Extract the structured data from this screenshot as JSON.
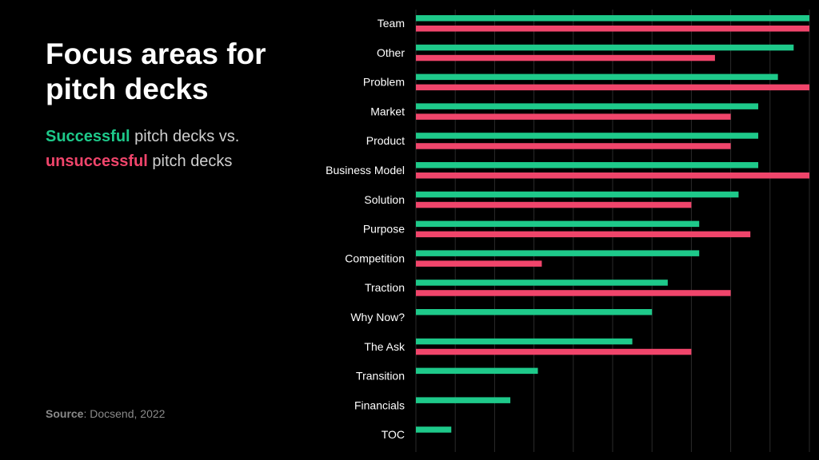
{
  "heading": {
    "title": "Focus areas for pitch decks",
    "subtitle_success": "Successful",
    "subtitle_mid": " pitch decks vs.",
    "subtitle_fail": "unsuccessful",
    "subtitle_end": " pitch decks"
  },
  "source": {
    "label": "Source",
    "text": ": Docsend, 2022"
  },
  "colors": {
    "successful": "#1ec98a",
    "unsuccessful": "#f0456b",
    "background": "#000000",
    "grid": "#2a2a2a"
  },
  "chart_data": {
    "type": "bar",
    "orientation": "horizontal",
    "categories": [
      "Team",
      "Other",
      "Problem",
      "Market",
      "Product",
      "Business Model",
      "Solution",
      "Purpose",
      "Competition",
      "Traction",
      "Why Now?",
      "The Ask",
      "Transition",
      "Financials",
      "TOC"
    ],
    "series": [
      {
        "name": "Successful",
        "color": "#1ec98a",
        "values": [
          100,
          96,
          92,
          87,
          87,
          87,
          82,
          72,
          72,
          64,
          60,
          55,
          31,
          24,
          9
        ]
      },
      {
        "name": "Unsuccessful",
        "color": "#f0456b",
        "values": [
          100,
          76,
          100,
          80,
          80,
          100,
          70,
          85,
          32,
          80,
          null,
          70,
          null,
          null,
          null
        ]
      }
    ],
    "xlim": [
      0,
      100
    ],
    "grid": true,
    "xlabel": "",
    "ylabel": ""
  }
}
